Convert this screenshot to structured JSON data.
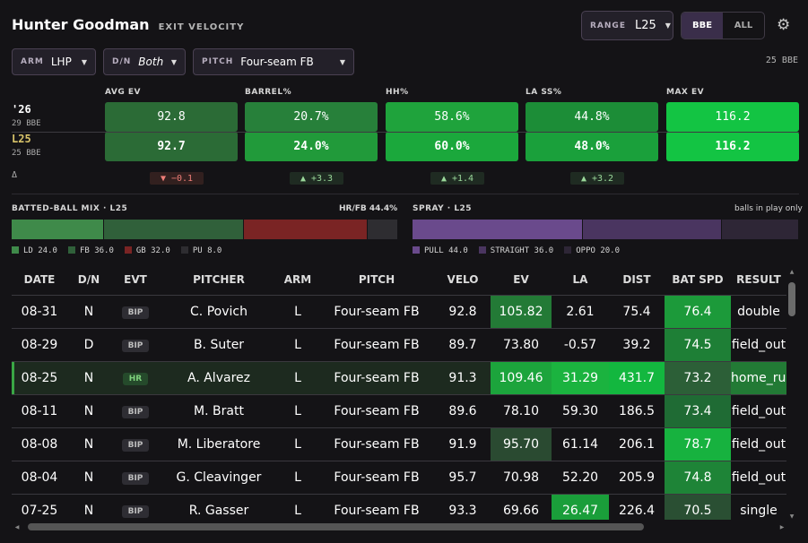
{
  "header": {
    "player": "Hunter Goodman",
    "subtitle": "EXIT VELOCITY"
  },
  "range": {
    "label": "RANGE",
    "value": "L25"
  },
  "toggle": {
    "active": "BBE",
    "inactive": "ALL"
  },
  "filters": [
    {
      "label": "ARM",
      "value": "LHP"
    },
    {
      "label": "D/N",
      "value": "Both"
    },
    {
      "label": "PITCH",
      "value": "Four-seam FB"
    }
  ],
  "bbe_count": "25 BBE",
  "rows": {
    "season_label": "'26",
    "season_sub": "29 BBE",
    "l25_label": "L25",
    "l25_sub": "25 BBE",
    "delta_label": "Δ"
  },
  "metrics": [
    {
      "name": "AVG EV",
      "season": "92.8",
      "l25": "92.7",
      "delta": "▼ −0.1",
      "dir": "down",
      "season_color": "#2b6b36",
      "l25_color": "#2b6b36"
    },
    {
      "name": "BARREL%",
      "season": "20.7%",
      "l25": "24.0%",
      "delta": "▲ +3.3",
      "dir": "up",
      "season_color": "#27803a",
      "l25_color": "#219a3a"
    },
    {
      "name": "HH%",
      "season": "58.6%",
      "l25": "60.0%",
      "delta": "▲ +1.4",
      "dir": "up",
      "season_color": "#1fa33c",
      "l25_color": "#1ba83c"
    },
    {
      "name": "LA SS%",
      "season": "44.8%",
      "l25": "48.0%",
      "delta": "▲ +3.2",
      "dir": "up",
      "season_color": "#1c8d37",
      "l25_color": "#1aa03b"
    },
    {
      "name": "MAX EV",
      "season": "116.2",
      "l25": "116.2",
      "delta": "",
      "dir": "none",
      "season_color": "#13c443",
      "l25_color": "#13c443"
    }
  ],
  "batted_mix": {
    "title": "BATTED-BALL MIX · L25",
    "hrfb": "HR/FB 44.4%",
    "segments": [
      {
        "key": "LD",
        "value": 24.0,
        "label": "LD 24.0",
        "color": "#3f8a4a"
      },
      {
        "key": "FB",
        "value": 36.0,
        "label": "FB 36.0",
        "color": "#30603a"
      },
      {
        "key": "GB",
        "value": 32.0,
        "label": "GB 32.0",
        "color": "#7a2424"
      },
      {
        "key": "PU",
        "value": 8.0,
        "label": "PU 8.0",
        "color": "#2e2d31"
      }
    ]
  },
  "spray": {
    "title": "SPRAY · L25",
    "note": "balls in play only",
    "segments": [
      {
        "key": "PULL",
        "value": 44.0,
        "label": "PULL 44.0",
        "color": "#6a4a8c"
      },
      {
        "key": "STRAIGHT",
        "value": 36.0,
        "label": "STRAIGHT 36.0",
        "color": "#4a3560"
      },
      {
        "key": "OPPO",
        "value": 20.0,
        "label": "OPPO 20.0",
        "color": "#2e2636"
      }
    ]
  },
  "table": {
    "columns": [
      "DATE",
      "D/N",
      "EVT",
      "PITCHER",
      "ARM",
      "PITCH",
      "VELO",
      "EV",
      "LA",
      "DIST",
      "BAT SPD",
      "RESULT"
    ],
    "rows": [
      {
        "date": "08-31",
        "dn": "N",
        "evt": "BIP",
        "pitcher": "C. Povich",
        "arm": "L",
        "pitch": "Four-seam FB",
        "velo": "92.8",
        "ev": "105.82",
        "la": "2.61",
        "dist": "75.4",
        "bat": "76.4",
        "result": "double",
        "ev_bg": "#237a36",
        "la_bg": "",
        "dist_bg": "",
        "bat_bg": "#1c9a3a",
        "result_bg": "",
        "hl": false
      },
      {
        "date": "08-29",
        "dn": "D",
        "evt": "BIP",
        "pitcher": "B. Suter",
        "arm": "L",
        "pitch": "Four-seam FB",
        "velo": "89.7",
        "ev": "73.80",
        "la": "-0.57",
        "dist": "39.2",
        "bat": "74.5",
        "result": "field_out",
        "ev_bg": "",
        "la_bg": "",
        "dist_bg": "",
        "bat_bg": "#1e7f36",
        "result_bg": "",
        "hl": false
      },
      {
        "date": "08-25",
        "dn": "N",
        "evt": "HR",
        "pitcher": "A. Alvarez",
        "arm": "L",
        "pitch": "Four-seam FB",
        "velo": "91.3",
        "ev": "109.46",
        "la": "31.29",
        "dist": "431.7",
        "bat": "73.2",
        "result": "home_run",
        "ev_bg": "#1ca43c",
        "la_bg": "#1bb33f",
        "dist_bg": "#13b73f",
        "bat_bg": "#2c5f37",
        "result_bg": "#227a35",
        "hl": true
      },
      {
        "date": "08-11",
        "dn": "N",
        "evt": "BIP",
        "pitcher": "M. Bratt",
        "arm": "L",
        "pitch": "Four-seam FB",
        "velo": "89.6",
        "ev": "78.10",
        "la": "59.30",
        "dist": "186.5",
        "bat": "73.4",
        "result": "field_out",
        "ev_bg": "",
        "la_bg": "",
        "dist_bg": "",
        "bat_bg": "#1f6b34",
        "result_bg": "",
        "hl": false
      },
      {
        "date": "08-08",
        "dn": "N",
        "evt": "BIP",
        "pitcher": "M. Liberatore",
        "arm": "L",
        "pitch": "Four-seam FB",
        "velo": "91.9",
        "ev": "95.70",
        "la": "61.14",
        "dist": "206.1",
        "bat": "78.7",
        "result": "field_out",
        "ev_bg": "#2a4a31",
        "la_bg": "",
        "dist_bg": "",
        "bat_bg": "#17b23f",
        "result_bg": "",
        "hl": false
      },
      {
        "date": "08-04",
        "dn": "N",
        "evt": "BIP",
        "pitcher": "G. Cleavinger",
        "arm": "L",
        "pitch": "Four-seam FB",
        "velo": "95.7",
        "ev": "70.98",
        "la": "52.20",
        "dist": "205.9",
        "bat": "74.8",
        "result": "field_out",
        "ev_bg": "",
        "la_bg": "",
        "dist_bg": "",
        "bat_bg": "#1e8437",
        "result_bg": "",
        "hl": false
      },
      {
        "date": "07-25",
        "dn": "N",
        "evt": "BIP",
        "pitcher": "R. Gasser",
        "arm": "L",
        "pitch": "Four-seam FB",
        "velo": "93.3",
        "ev": "69.66",
        "la": "26.47",
        "dist": "226.4",
        "bat": "70.5",
        "result": "single",
        "ev_bg": "",
        "la_bg": "#1a9e3a",
        "dist_bg": "",
        "bat_bg": "#2a4f33",
        "result_bg": "",
        "hl": false
      }
    ]
  }
}
